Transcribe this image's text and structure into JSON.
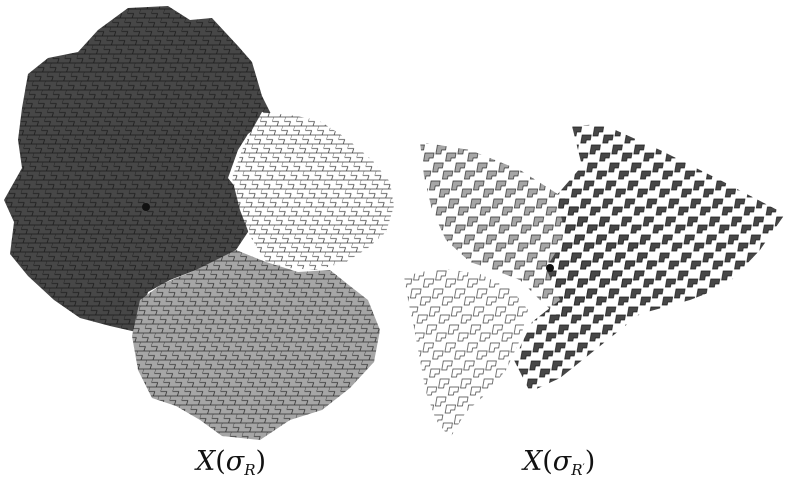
{
  "figure": {
    "left_panel": {
      "caption_symbol": "X",
      "caption_subscript": "R",
      "caption_sigma": "σ",
      "regions": [
        {
          "name": "dark",
          "fill": "#474747"
        },
        {
          "name": "white",
          "fill": "#ffffff"
        },
        {
          "name": "light",
          "fill": "#a6a6a6"
        }
      ]
    },
    "right_panel": {
      "caption_symbol": "X",
      "caption_subscript": "R",
      "caption_prime": "′",
      "caption_sigma": "σ",
      "regions": [
        {
          "name": "dark",
          "fill": "#474747"
        },
        {
          "name": "light",
          "fill": "#a6a6a6"
        },
        {
          "name": "white",
          "fill": "#ffffff"
        }
      ]
    },
    "stroke_color": "#222222"
  }
}
